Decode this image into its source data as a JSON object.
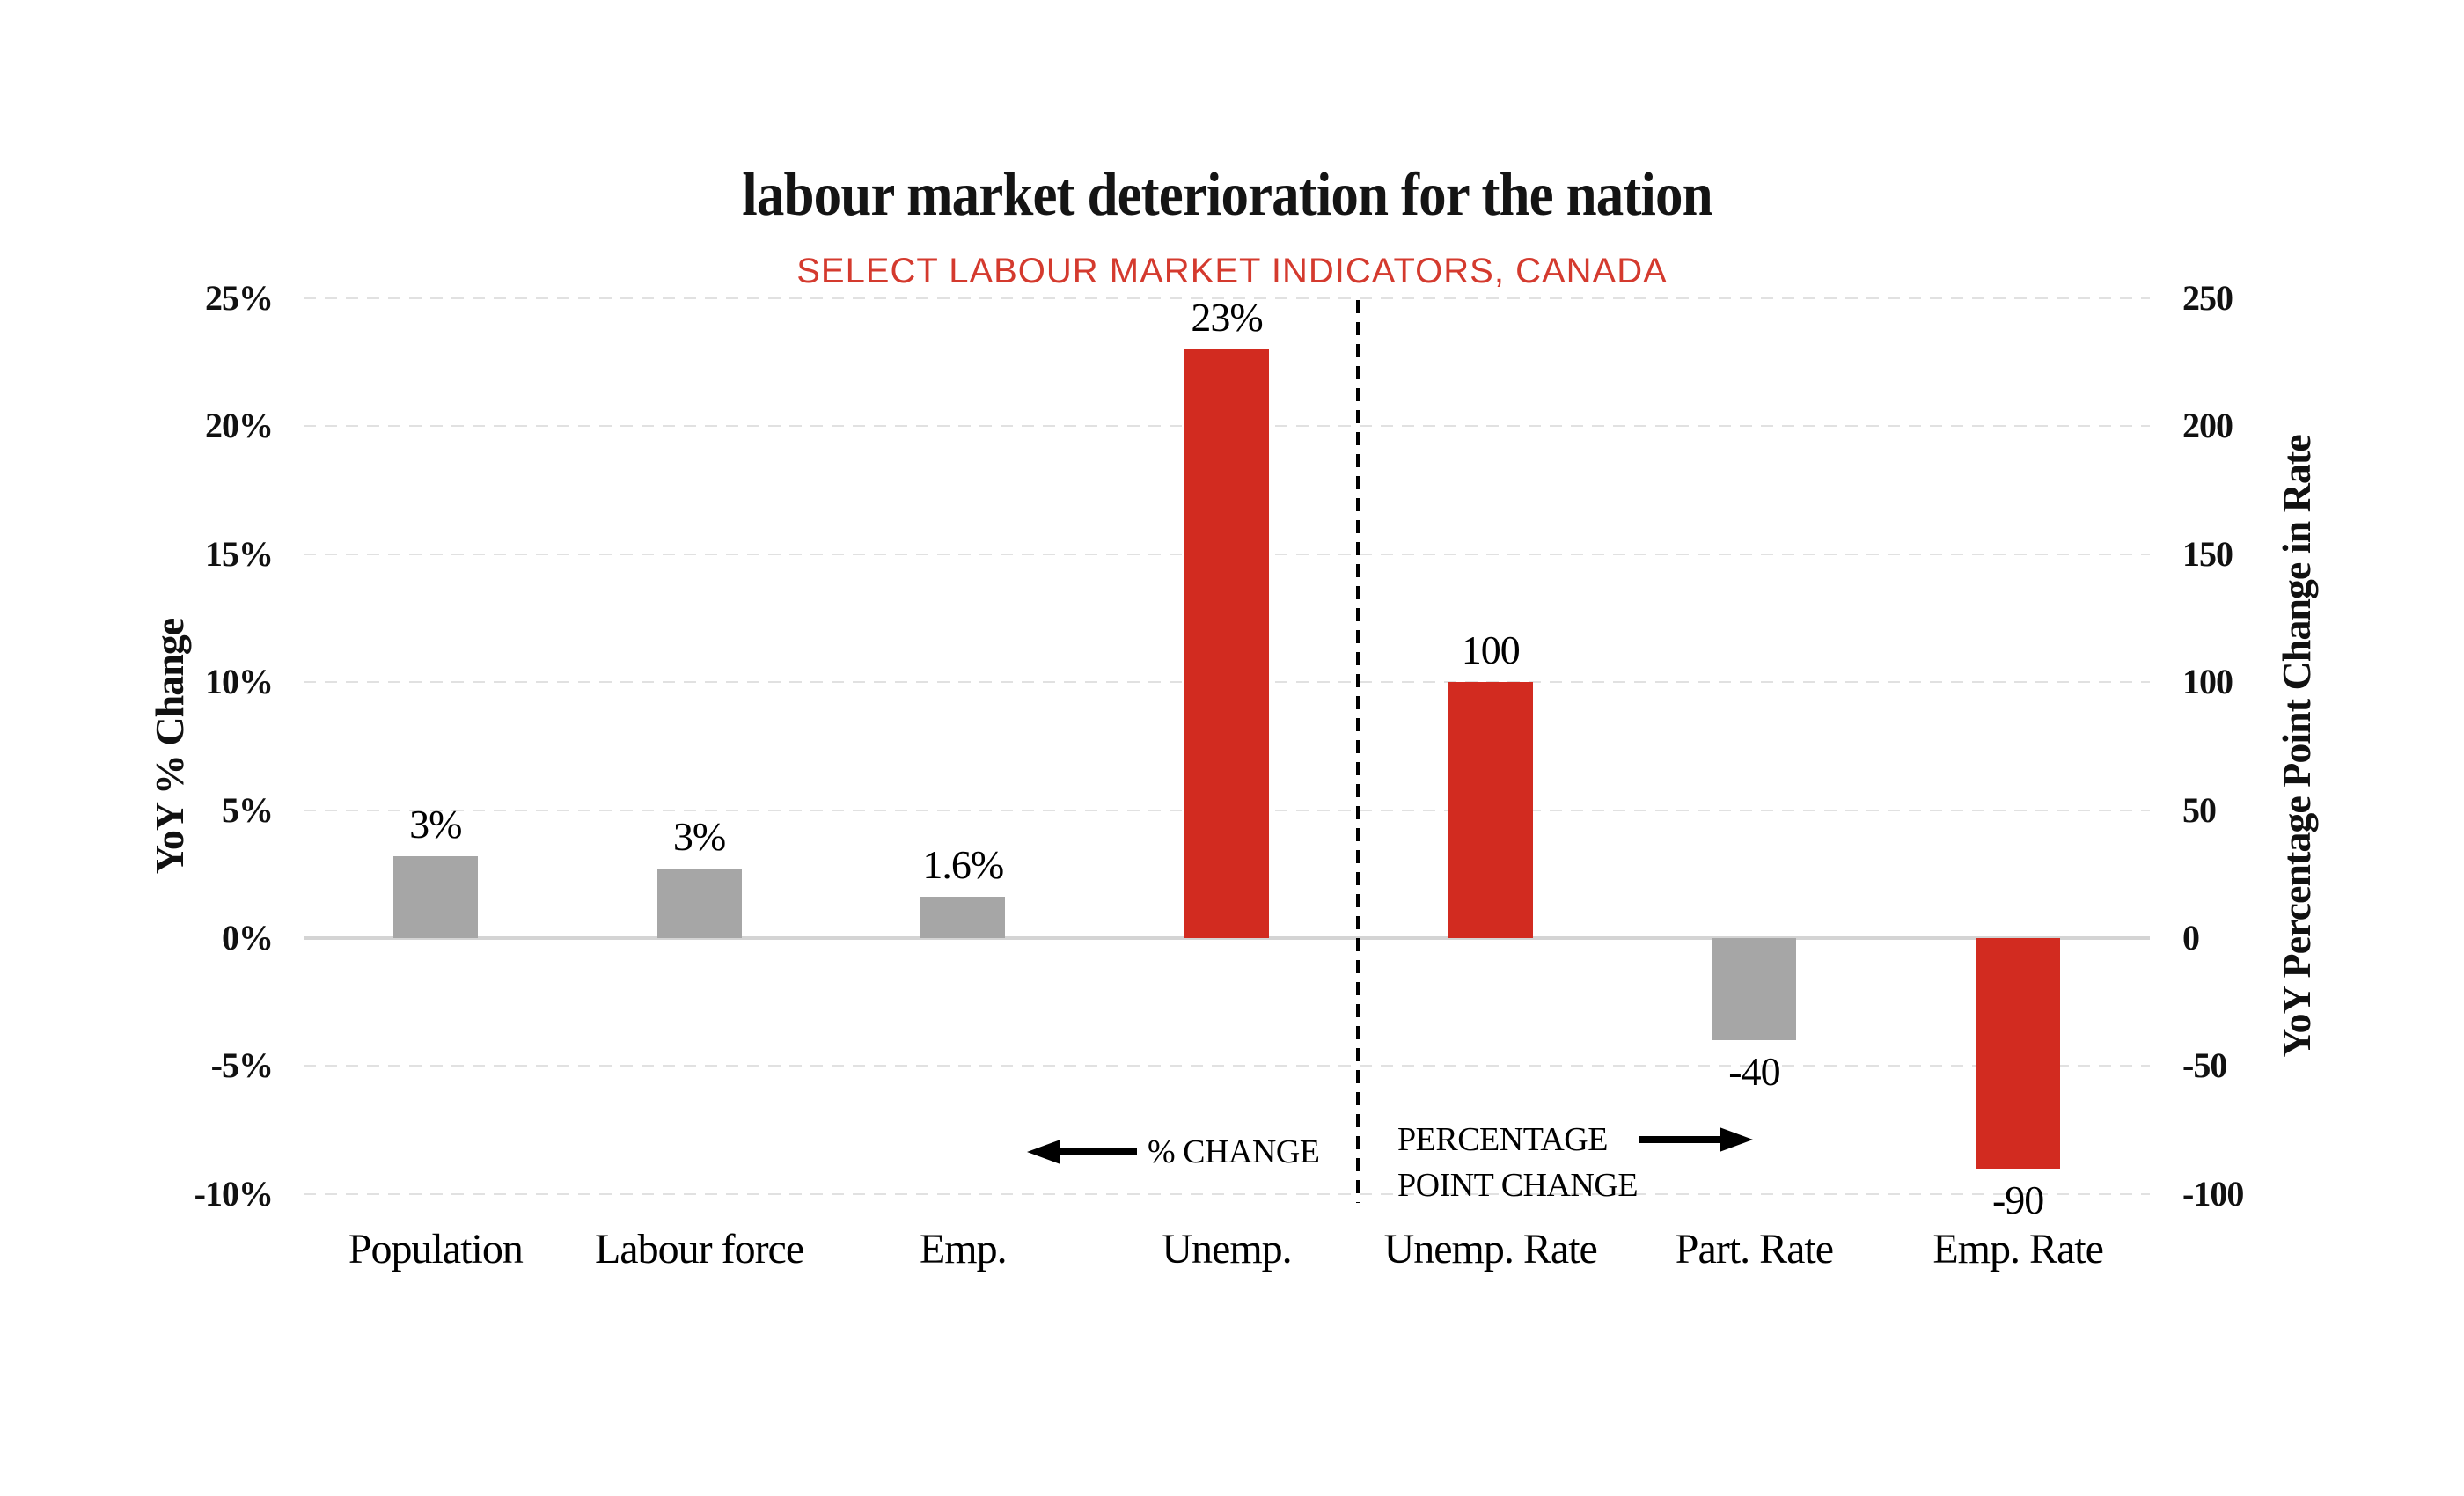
{
  "title": "labour market deterioration for the nation",
  "subtitle": "SELECT LABOUR MARKET INDICATORS, CANADA",
  "colors": {
    "bar_red": "#d22b20",
    "bar_gray": "#a6a6a6",
    "subtitle_red": "#d43a2e",
    "zero_line": "#d4d4d4",
    "gridline": "#e1e1e1",
    "text": "#111111"
  },
  "chart_data": {
    "type": "bar",
    "title": "labour market deterioration for the nation",
    "subtitle": "SELECT LABOUR MARKET INDICATORS, CANADA",
    "grid": "horizontal dashed gridlines at every left-axis tick; solid light line at zero",
    "legend_position": "none",
    "left_axis": {
      "label": "YoY % Change",
      "tick_labels": [
        "25%",
        "20%",
        "15%",
        "10%",
        "5%",
        "0%",
        "-5%",
        "-10%"
      ],
      "tick_values": [
        25,
        20,
        15,
        10,
        5,
        0,
        -5,
        -10
      ],
      "range": [
        -10,
        25
      ]
    },
    "right_axis": {
      "label": "YoY Percentage Point Change in Rate",
      "tick_labels": [
        "250",
        "200",
        "150",
        "100",
        "50",
        "0",
        "-50",
        "-100"
      ],
      "tick_values": [
        250,
        200,
        150,
        100,
        50,
        0,
        -50,
        -100
      ],
      "range": [
        -100,
        250
      ]
    },
    "categories": [
      "Population",
      "Labour force",
      "Emp.",
      "Unemp.",
      "Unemp. Rate",
      "Part. Rate",
      "Emp. Rate"
    ],
    "bars": [
      {
        "category": "Population",
        "axis": "left",
        "value": 3.2,
        "label": "3%",
        "color": "bar_gray"
      },
      {
        "category": "Labour force",
        "axis": "left",
        "value": 2.7,
        "label": "3%",
        "color": "bar_gray"
      },
      {
        "category": "Emp.",
        "axis": "left",
        "value": 1.6,
        "label": "1.6%",
        "color": "bar_gray"
      },
      {
        "category": "Unemp.",
        "axis": "left",
        "value": 23,
        "label": "23%",
        "color": "bar_red"
      },
      {
        "category": "Unemp. Rate",
        "axis": "right",
        "value": 100,
        "label": "100",
        "color": "bar_red"
      },
      {
        "category": "Part. Rate",
        "axis": "right",
        "value": -40,
        "label": "-40",
        "color": "bar_gray"
      },
      {
        "category": "Emp. Rate",
        "axis": "right",
        "value": -90,
        "label": "-90",
        "color": "bar_red"
      }
    ],
    "annotations": {
      "left_arrow_label": "% CHANGE",
      "right_arrow_label_line1": "PERCENTAGE",
      "right_arrow_label_line2": "POINT CHANGE",
      "separator": "vertical black dashed line between Unemp. and Unemp. Rate"
    }
  }
}
